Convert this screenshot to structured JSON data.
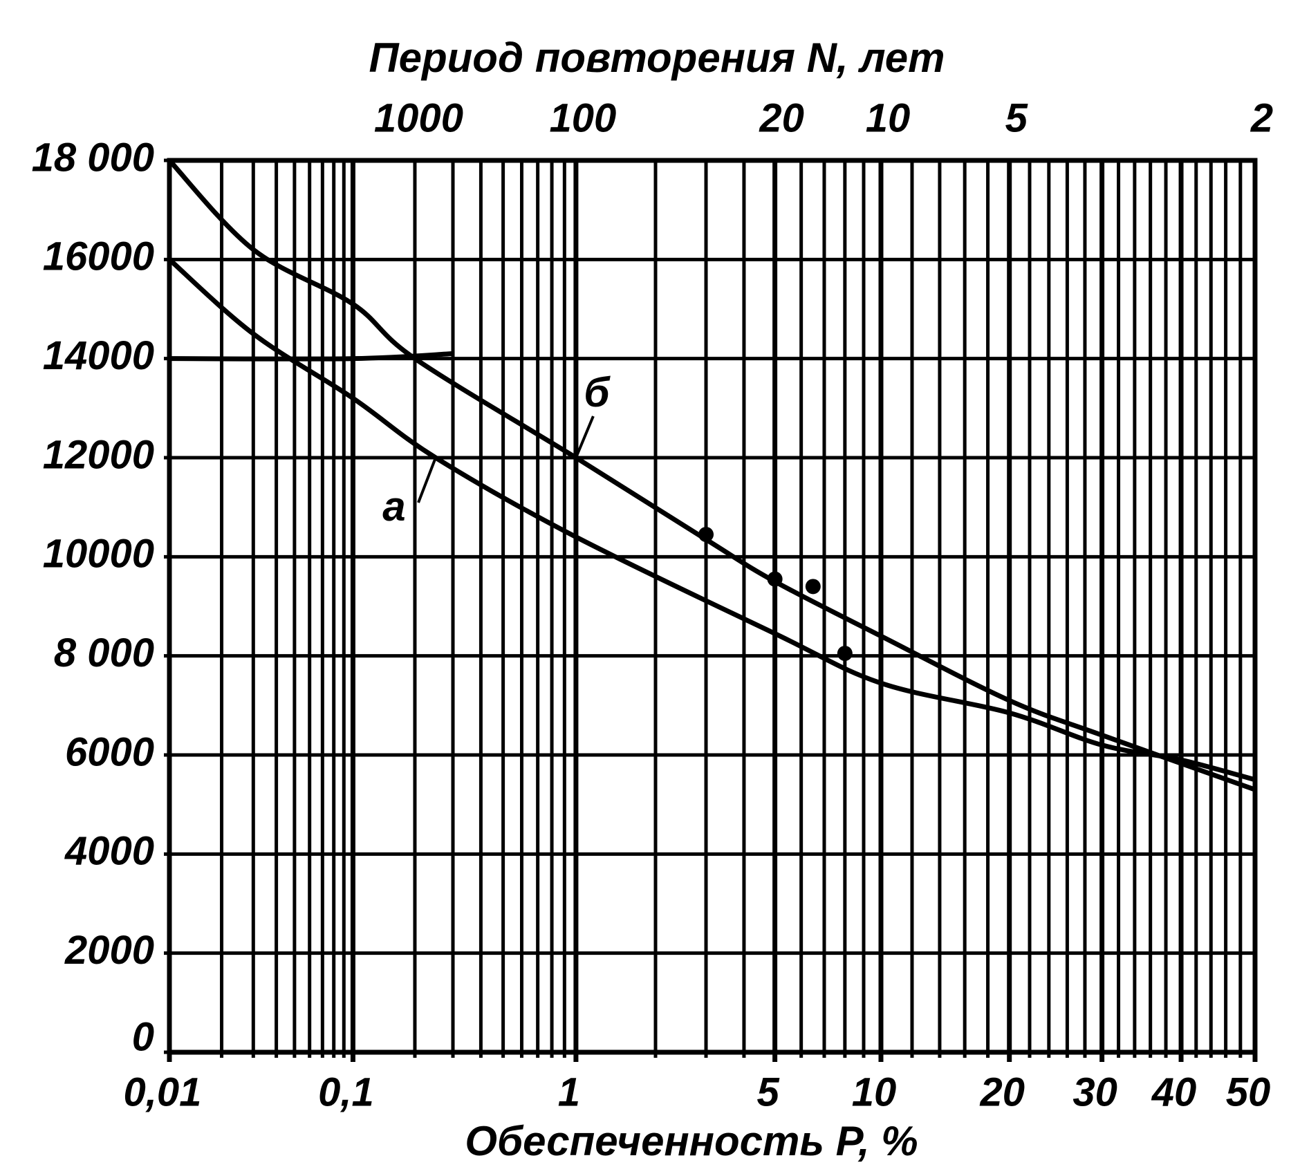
{
  "chart_data": {
    "type": "line",
    "title": "Период повторения N, лет",
    "xlabel": "Обеспеченность P, %",
    "xscale": "probability",
    "xlim": [
      0.01,
      50
    ],
    "xticks": [
      {
        "value": 0.01,
        "label": "0,01"
      },
      {
        "value": 0.1,
        "label": "0,1"
      },
      1,
      5,
      10,
      20,
      30,
      40,
      50
    ],
    "xgrid": [
      0.01,
      0.02,
      0.03,
      0.04,
      0.05,
      0.06,
      0.07,
      0.08,
      0.09,
      0.1,
      0.2,
      0.3,
      0.4,
      0.5,
      0.6,
      0.7,
      0.8,
      0.9,
      1,
      2,
      3,
      4,
      5,
      6,
      7,
      8,
      9,
      10,
      12,
      14,
      16,
      18,
      20,
      22,
      24,
      26,
      28,
      30,
      32,
      34,
      36,
      38,
      40,
      42,
      44,
      46,
      48,
      50
    ],
    "x2ticks": [
      1000,
      100,
      20,
      10,
      5,
      2
    ],
    "ylim": [
      0,
      18000
    ],
    "yticks": [
      0,
      2000,
      4000,
      6000,
      {
        "value": 8000,
        "label": "8 000"
      },
      10000,
      12000,
      14000,
      16000,
      {
        "value": 18000,
        "label": "18 000"
      }
    ],
    "grid": true,
    "series": [
      {
        "name": "б",
        "color": "#000000",
        "x": [
          0.01,
          0.03,
          0.1,
          0.2,
          1,
          3,
          5,
          10,
          20,
          30,
          50
        ],
        "values": [
          18000,
          16200,
          15100,
          14000,
          12000,
          10350,
          9500,
          8400,
          7100,
          6400,
          5300
        ]
      },
      {
        "name": "а",
        "color": "#000000",
        "x": [
          0.01,
          0.03,
          0.1,
          0.25,
          1,
          5,
          10,
          20,
          30,
          40,
          50
        ],
        "values": [
          16000,
          14500,
          13200,
          12000,
          10400,
          8450,
          7450,
          6850,
          6200,
          5900,
          5500
        ]
      },
      {
        "color": "#000000",
        "x": [
          0.01,
          0.1,
          0.3
        ],
        "values": [
          14000,
          14000,
          14100
        ]
      }
    ],
    "points": {
      "color": "#000000",
      "x": [
        3,
        5,
        6.5,
        8
      ],
      "values": [
        10450,
        9550,
        9400,
        8050
      ]
    }
  }
}
